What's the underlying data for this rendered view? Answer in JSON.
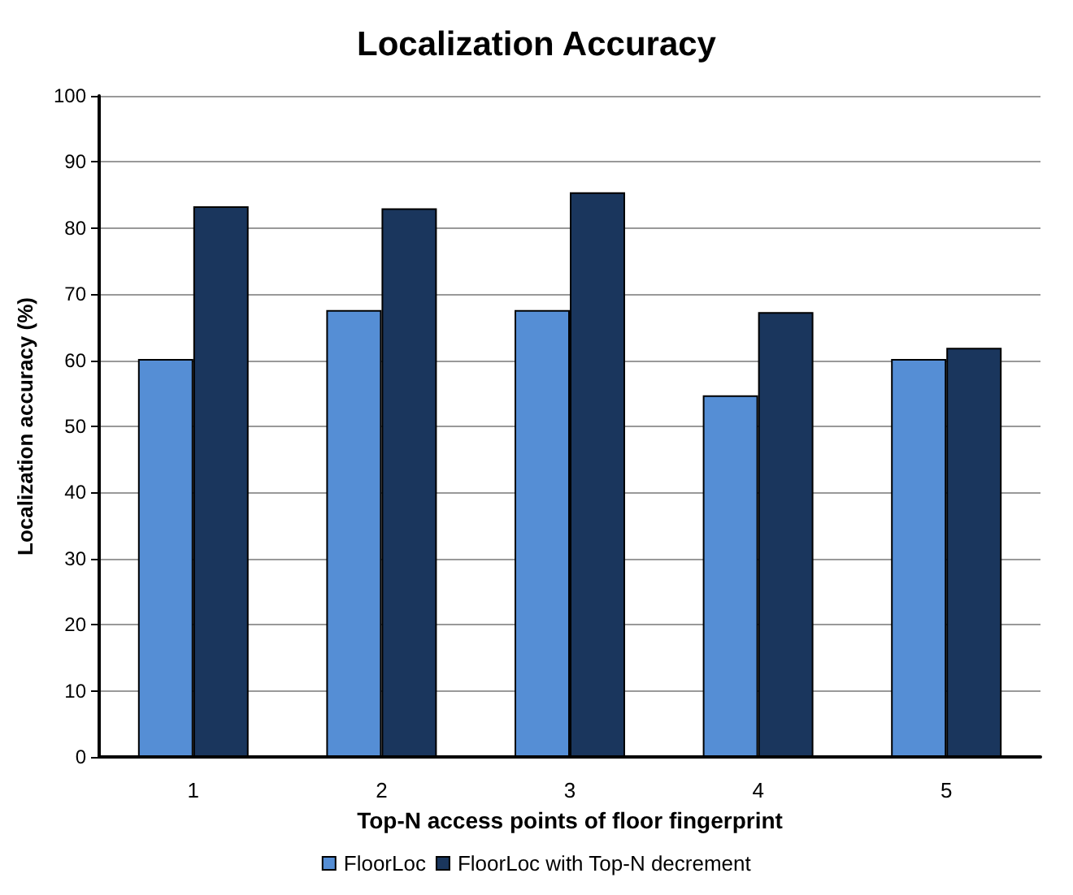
{
  "chart_data": {
    "type": "bar",
    "title": "Localization Accuracy",
    "xlabel": "Top-N access points of floor fingerprint",
    "ylabel": "Localization accuracy (%)",
    "categories": [
      "1",
      "2",
      "3",
      "4",
      "5"
    ],
    "series": [
      {
        "name": "FloorLoc",
        "color": "#558ed5",
        "values": [
          60.2,
          67.6,
          67.6,
          54.7,
          60.2
        ]
      },
      {
        "name": "FloorLoc with Top-N decrement",
        "color": "#1a365d",
        "values": [
          83.3,
          83,
          85.4,
          67.3,
          61.9
        ]
      }
    ],
    "ylim": [
      0,
      100
    ],
    "yticks": [
      0,
      10,
      20,
      30,
      40,
      50,
      60,
      70,
      80,
      90,
      100
    ],
    "grid": "y",
    "legend": "bottom"
  }
}
